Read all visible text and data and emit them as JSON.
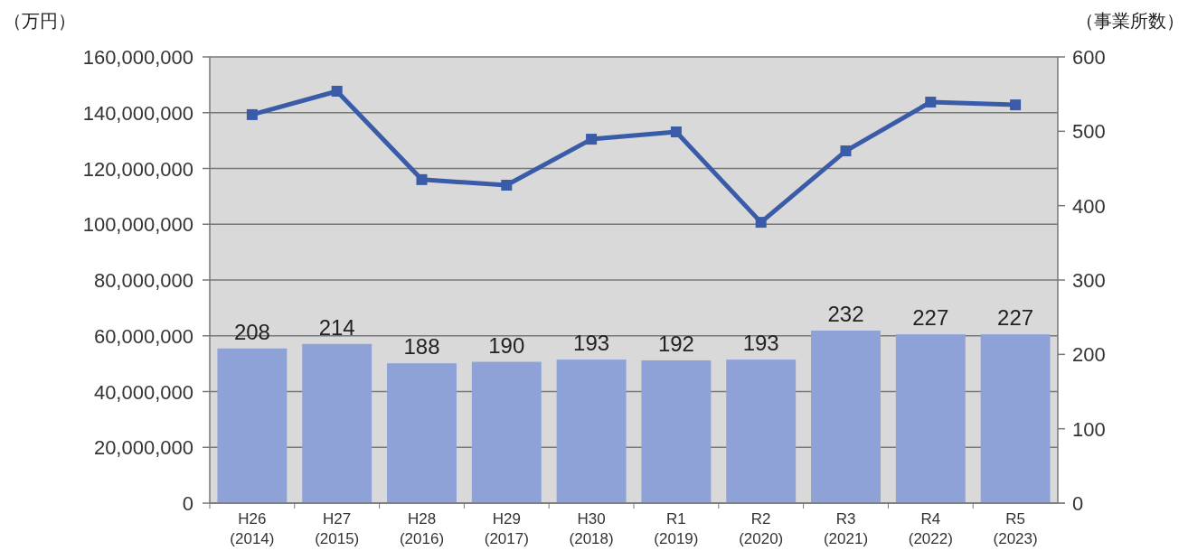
{
  "chart_data": {
    "type": "bar",
    "ylabel": "（万円）",
    "y2label": "（事業所数）",
    "categories": [
      "H26\n(2014)",
      "H27\n(2015)",
      "H28\n(2016)",
      "H29\n(2017)",
      "H30\n(2018)",
      "R1\n(2019)",
      "R2\n(2020)",
      "R3\n(2021)",
      "R4\n(2022)",
      "R5\n(2023)"
    ],
    "series": [
      {
        "axis": "y2",
        "color": "#8ea2d8",
        "values": [
          208,
          214,
          188,
          190,
          193,
          192,
          193,
          232,
          227,
          227
        ],
        "value_labels": [
          "208",
          "214",
          "188",
          "190",
          "193",
          "192",
          "193",
          "232",
          "227",
          "227"
        ]
      },
      {
        "type": "line",
        "color": "#3a5ca8",
        "marker": "square",
        "values": [
          139300000,
          147700000,
          116000000,
          114000000,
          130500000,
          133100000,
          100700000,
          126300000,
          143800000,
          142800000
        ]
      }
    ],
    "ylim": [
      0,
      160000000
    ],
    "yticks": [
      {
        "value": 0,
        "label": "0"
      },
      {
        "value": 20000000,
        "label": "20,000,000"
      },
      {
        "value": 40000000,
        "label": "40,000,000"
      },
      {
        "value": 60000000,
        "label": "60,000,000"
      },
      {
        "value": 80000000,
        "label": "80,000,000"
      },
      {
        "value": 100000000,
        "label": "100,000,000"
      },
      {
        "value": 120000000,
        "label": "120,000,000"
      },
      {
        "value": 140000000,
        "label": "140,000,000"
      },
      {
        "value": 160000000,
        "label": "160,000,000"
      }
    ],
    "y2lim": [
      0,
      600
    ],
    "y2ticks": [
      0,
      100,
      200,
      300,
      400,
      500,
      600
    ],
    "grid": "y"
  }
}
